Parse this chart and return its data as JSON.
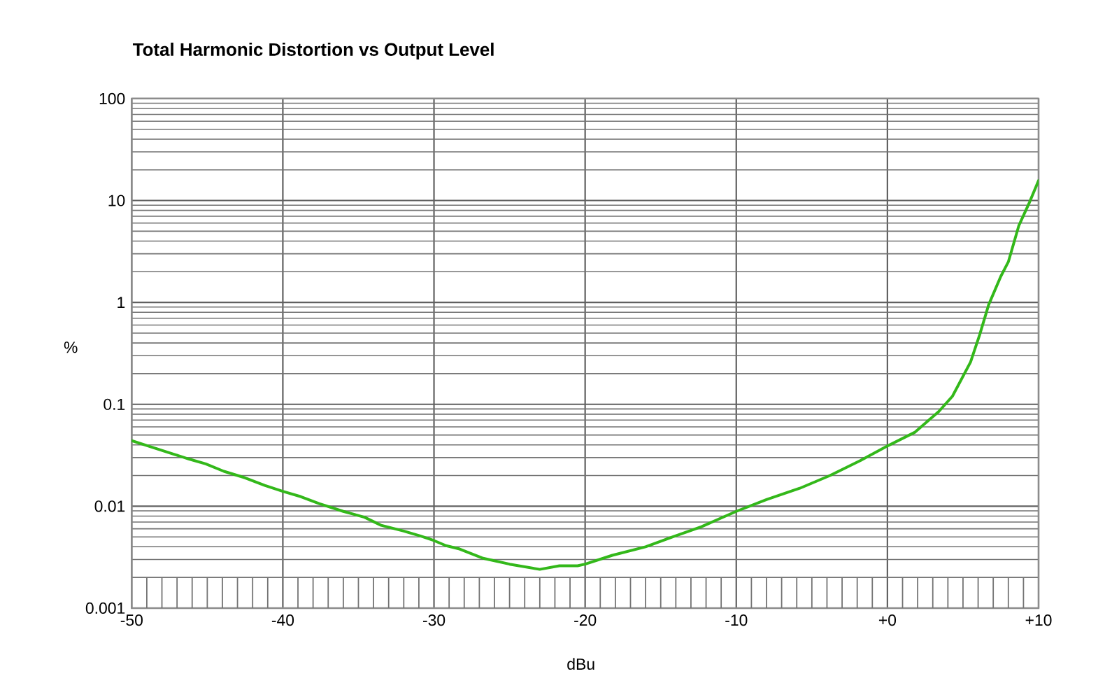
{
  "chart_data": {
    "type": "line",
    "title": "Total Harmonic Distortion vs Output Level",
    "xlabel": "dBu",
    "ylabel": "%",
    "log": "y",
    "grid": true,
    "xlim": [
      -50,
      10
    ],
    "ylim": [
      0.001,
      100
    ],
    "xticks": [
      -50,
      -40,
      -30,
      -20,
      -10,
      {
        "value": 0,
        "label": "+0"
      },
      {
        "value": 10,
        "label": "+10"
      }
    ],
    "yticks": [
      0.001,
      0.01,
      0.1,
      1,
      10,
      100
    ],
    "x": [
      -50,
      -48.9,
      -47.1,
      -46.2,
      -45.1,
      -43.9,
      -42.5,
      -41.2,
      -40,
      -38.8,
      -37.6,
      -36,
      -34.6,
      -33.5,
      -32,
      -30.9,
      -30,
      -29.2,
      -28.3,
      -26.8,
      -25,
      -23,
      -21.7,
      -20.5,
      -20,
      -18.2,
      -16,
      -14.2,
      -12.3,
      -10,
      -8,
      -5.8,
      -3.8,
      -1.8,
      0,
      1.8,
      3.4,
      4.3,
      5.5,
      6.1,
      6.7,
      7.5,
      8,
      8.7,
      9.4,
      10
    ],
    "series": [
      {
        "color": "#33b81a",
        "values": [
          0.044,
          0.039,
          0.032,
          0.029,
          0.026,
          0.022,
          0.019,
          0.016,
          0.014,
          0.0124,
          0.0106,
          0.0089,
          0.0078,
          0.0065,
          0.0057,
          0.0051,
          0.0046,
          0.0041,
          0.0038,
          0.0031,
          0.0027,
          0.0024,
          0.0026,
          0.0026,
          0.0027,
          0.0033,
          0.004,
          0.005,
          0.0063,
          0.0089,
          0.0116,
          0.015,
          0.02,
          0.028,
          0.039,
          0.053,
          0.085,
          0.12,
          0.26,
          0.48,
          0.95,
          1.8,
          2.5,
          5.7,
          9.6,
          15.7
        ]
      }
    ]
  }
}
